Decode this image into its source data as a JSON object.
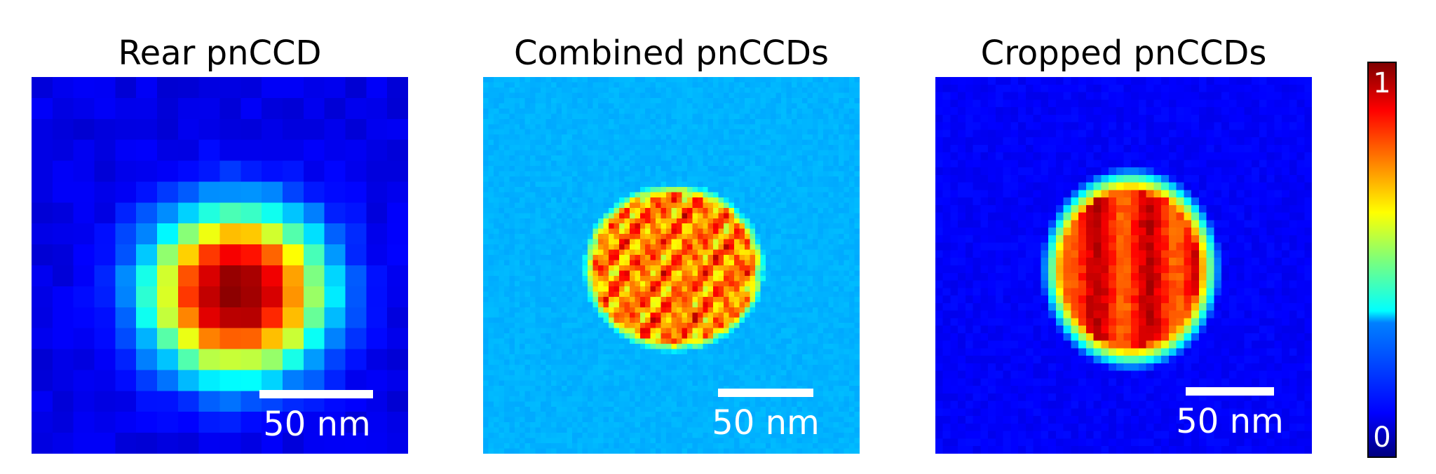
{
  "panels": [
    {
      "title": "Rear pnCCD",
      "scale_label": "50 nm",
      "pattern": "rear"
    },
    {
      "title": "Combined pnCCDs",
      "scale_label": "50 nm",
      "pattern": "combined"
    },
    {
      "title": "Cropped pnCCDs",
      "scale_label": "50 nm",
      "pattern": "cropped"
    }
  ],
  "colorbar": {
    "max_label": "1",
    "min_label": "0",
    "colormap": "jet"
  },
  "chart_data": {
    "type": "heatmap",
    "titles": [
      "Rear pnCCD",
      "Combined pnCCDs",
      "Cropped pnCCDs"
    ],
    "scale_bar": "50 nm",
    "value_range": [
      0,
      1
    ],
    "colormap": "jet"
  }
}
